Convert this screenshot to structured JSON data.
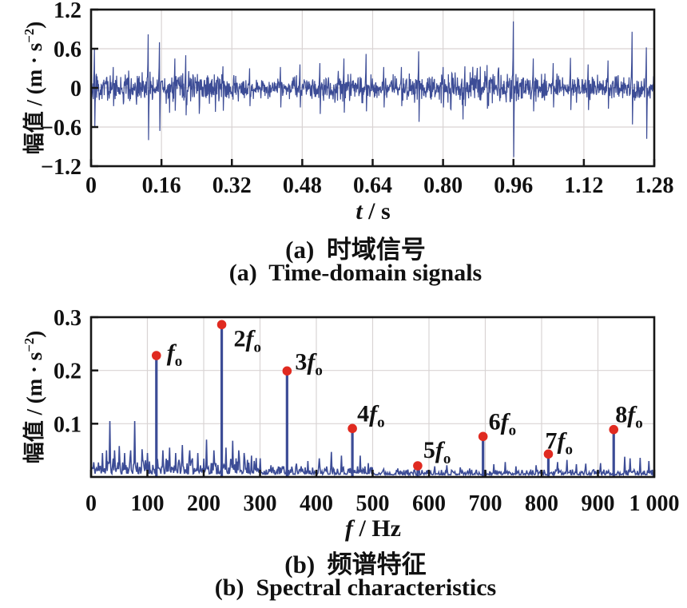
{
  "figure": {
    "background": "#ffffff",
    "signal_color": "#3C4C96",
    "marker_color": "#E02A20",
    "grid_color": "#D9D4D4",
    "axis_color": "#161616"
  },
  "chart_data": [
    {
      "id": "time-domain",
      "type": "line",
      "title_zh": "(a)  时域信号",
      "title_en": "(a)  Time-domain signals",
      "caption_zh": "(a)  时域信号",
      "caption_en": "(a)  Time-domain signals",
      "xlabel_var": "t",
      "xlabel_unit": " / s",
      "ylabel_pre": "幅值 / (m · s",
      "ylabel_sup": "−2",
      "ylabel_post": ")",
      "xlim": [
        0,
        1.28
      ],
      "ylim": [
        -1.2,
        1.2
      ],
      "grid": true,
      "x_ticks": [
        {
          "v": 0,
          "label": "0"
        },
        {
          "v": 0.16,
          "label": "0.16"
        },
        {
          "v": 0.32,
          "label": "0.32"
        },
        {
          "v": 0.48,
          "label": "0.48"
        },
        {
          "v": 0.64,
          "label": "0.64"
        },
        {
          "v": 0.8,
          "label": "0.80"
        },
        {
          "v": 0.96,
          "label": "0.96"
        },
        {
          "v": 1.12,
          "label": "1.12"
        },
        {
          "v": 1.28,
          "label": "1.28"
        }
      ],
      "y_ticks": [
        {
          "v": 1.2,
          "label": "1.2"
        },
        {
          "v": 0.6,
          "label": "0.6"
        },
        {
          "v": 0,
          "label": "0"
        },
        {
          "v": -0.6,
          "label": "−0.6"
        },
        {
          "v": -1.2,
          "label": "−1.2"
        }
      ],
      "signal": {
        "n_points": 1500,
        "noise_rms": 0.095,
        "seed": 20,
        "impulses": [
          [
            0.008,
            0.6,
            -0.6
          ],
          [
            0.05,
            0.32,
            -0.28
          ],
          [
            0.13,
            0.82,
            -0.8
          ],
          [
            0.155,
            0.7,
            -0.66
          ],
          [
            0.19,
            0.45,
            -0.35
          ],
          [
            0.215,
            0.5,
            -0.42
          ],
          [
            0.3,
            0.33,
            -0.35
          ],
          [
            0.36,
            0.3,
            -0.28
          ],
          [
            0.43,
            0.32,
            -0.3
          ],
          [
            0.475,
            0.36,
            -0.3
          ],
          [
            0.52,
            0.38,
            -0.4
          ],
          [
            0.575,
            0.45,
            -0.38
          ],
          [
            0.625,
            0.52,
            -0.36
          ],
          [
            0.665,
            0.32,
            -0.3
          ],
          [
            0.705,
            0.32,
            -0.28
          ],
          [
            0.745,
            0.56,
            -0.52
          ],
          [
            0.8,
            0.32,
            -0.3
          ],
          [
            0.85,
            0.33,
            -0.28
          ],
          [
            0.9,
            0.35,
            -0.32
          ],
          [
            0.96,
            1.02,
            -1.06
          ],
          [
            1.005,
            0.45,
            -0.36
          ],
          [
            1.05,
            0.38,
            -0.3
          ],
          [
            1.09,
            0.46,
            -0.34
          ],
          [
            1.13,
            0.36,
            -0.34
          ],
          [
            1.175,
            0.42,
            -0.32
          ],
          [
            1.23,
            0.86,
            -0.56
          ],
          [
            1.262,
            0.62,
            -0.78
          ]
        ]
      }
    },
    {
      "id": "spectrum",
      "type": "line",
      "title_zh": "(b)  频谱特征",
      "title_en": "(b)  Spectral characteristics",
      "caption_zh": "(b)  频谱特征",
      "caption_en": "(b)  Spectral characteristics",
      "xlabel_var": "f",
      "xlabel_unit": " / Hz",
      "ylabel_pre": "幅值 / (m · s",
      "ylabel_sup": "−2",
      "ylabel_post": ")",
      "xlim": [
        0,
        1000
      ],
      "ylim": [
        0,
        0.3
      ],
      "grid": true,
      "x_ticks": [
        {
          "v": 0,
          "label": "0"
        },
        {
          "v": 100,
          "label": "100"
        },
        {
          "v": 200,
          "label": "200"
        },
        {
          "v": 300,
          "label": "300"
        },
        {
          "v": 400,
          "label": "400"
        },
        {
          "v": 500,
          "label": "500"
        },
        {
          "v": 600,
          "label": "600"
        },
        {
          "v": 700,
          "label": "700"
        },
        {
          "v": 800,
          "label": "800"
        },
        {
          "v": 900,
          "label": "900"
        },
        {
          "v": 1000,
          "label": "1 000"
        }
      ],
      "y_ticks": [
        {
          "v": 0.3,
          "label": "0.3"
        },
        {
          "v": 0.2,
          "label": "0.2"
        },
        {
          "v": 0.1,
          "label": "0.1"
        }
      ],
      "fundamental_hz": 116,
      "harmonics": [
        {
          "n": 1,
          "f": 116,
          "amp": 0.225,
          "label_prefix": "",
          "label_base": "f",
          "label_sub": "o"
        },
        {
          "n": 2,
          "f": 232,
          "amp": 0.283,
          "label_prefix": "2",
          "label_base": "f",
          "label_sub": "o"
        },
        {
          "n": 3,
          "f": 348,
          "amp": 0.196,
          "label_prefix": "3",
          "label_base": "f",
          "label_sub": "o"
        },
        {
          "n": 4,
          "f": 464,
          "amp": 0.088,
          "label_prefix": "4",
          "label_base": "f",
          "label_sub": "o"
        },
        {
          "n": 5,
          "f": 580,
          "amp": 0.018,
          "label_prefix": "5",
          "label_base": "f",
          "label_sub": "o"
        },
        {
          "n": 6,
          "f": 696,
          "amp": 0.073,
          "label_prefix": "6",
          "label_base": "f",
          "label_sub": "o"
        },
        {
          "n": 7,
          "f": 812,
          "amp": 0.04,
          "label_prefix": "7",
          "label_base": "f",
          "label_sub": "o"
        },
        {
          "n": 8,
          "f": 928,
          "amp": 0.086,
          "label_prefix": "8",
          "label_base": "f",
          "label_sub": "o"
        }
      ],
      "minor_peaks": [
        [
          20,
          0.045
        ],
        [
          27,
          0.05
        ],
        [
          33,
          0.105
        ],
        [
          42,
          0.05
        ],
        [
          50,
          0.058
        ],
        [
          60,
          0.045
        ],
        [
          70,
          0.05
        ],
        [
          78,
          0.105
        ],
        [
          90,
          0.052
        ],
        [
          100,
          0.045
        ],
        [
          128,
          0.05
        ],
        [
          140,
          0.055
        ],
        [
          150,
          0.045
        ],
        [
          162,
          0.06
        ],
        [
          175,
          0.05
        ],
        [
          190,
          0.045
        ],
        [
          205,
          0.07
        ],
        [
          218,
          0.05
        ],
        [
          240,
          0.055
        ],
        [
          252,
          0.068
        ],
        [
          262,
          0.05
        ],
        [
          272,
          0.045
        ],
        [
          285,
          0.04
        ],
        [
          300,
          0.035
        ],
        [
          320,
          0.022
        ],
        [
          340,
          0.02
        ],
        [
          365,
          0.025
        ],
        [
          385,
          0.03
        ],
        [
          405,
          0.035
        ],
        [
          427,
          0.047
        ],
        [
          445,
          0.04
        ],
        [
          478,
          0.04
        ],
        [
          492,
          0.026
        ],
        [
          520,
          0.015
        ],
        [
          545,
          0.016
        ],
        [
          562,
          0.014
        ],
        [
          610,
          0.02
        ],
        [
          632,
          0.022
        ],
        [
          655,
          0.018
        ],
        [
          672,
          0.016
        ],
        [
          715,
          0.024
        ],
        [
          735,
          0.028
        ],
        [
          755,
          0.02
        ],
        [
          790,
          0.022
        ],
        [
          828,
          0.028
        ],
        [
          845,
          0.032
        ],
        [
          862,
          0.024
        ],
        [
          879,
          0.025
        ],
        [
          905,
          0.026
        ],
        [
          948,
          0.038
        ],
        [
          957,
          0.035
        ],
        [
          975,
          0.036
        ],
        [
          990,
          0.03
        ]
      ],
      "noise_zones": [
        {
          "from": 0,
          "to": 300,
          "base": 0.006,
          "var": 0.03
        },
        {
          "from": 300,
          "to": 500,
          "base": 0.005,
          "var": 0.016
        },
        {
          "from": 500,
          "to": 1000,
          "base": 0.004,
          "var": 0.01
        }
      ],
      "seed": 11
    }
  ]
}
